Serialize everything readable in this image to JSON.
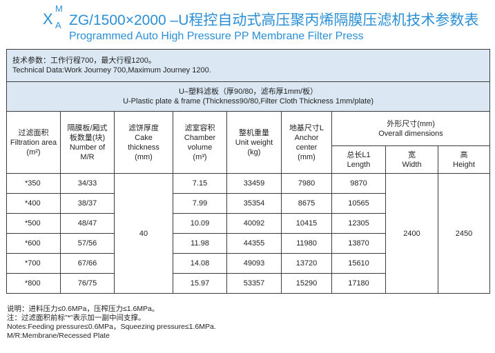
{
  "title": {
    "prefix_letter": "X",
    "prefix_sup": "M",
    "prefix_sub": "A",
    "cn": "ZG/1500×2000 –U程控自动式高压聚丙烯隔膜压滤机技术参数表",
    "en": "Programmed Auto High Pressure PP Membrane Filter Press"
  },
  "tech": {
    "cn": "技术参数：工作行程700，最大行程1200。",
    "en": "Technical Data:Work Journey 700,Maximum Journey 1200."
  },
  "plate": {
    "cn": "U–塑料滤板（厚90/80，滤布厚1mm/板）",
    "en": "U-Plastic plate & frame (Thickness90/80,Filter Cloth Thickness 1mm/plate)"
  },
  "headers": {
    "area": [
      "过滤面积",
      "Filtration area",
      "(m²)"
    ],
    "plates": [
      "隔膜板/厢式",
      "板数量(块)",
      "Number of",
      "M/R"
    ],
    "cake": [
      "滤饼厚度",
      "Cake",
      "thickness",
      "(mm)"
    ],
    "chamber": [
      "滤室容积",
      "Chamber",
      "volume",
      "(m³)"
    ],
    "weight": [
      "整机重量",
      "Unit weight",
      "(kg)"
    ],
    "anchor": [
      "地基尺寸L",
      "Anchor",
      "center",
      "(mm)"
    ],
    "overall": [
      "外形尺寸(mm)",
      "Overall  dimensions"
    ],
    "length": [
      "总长L1",
      "Length"
    ],
    "width": [
      "宽",
      "Width"
    ],
    "height": [
      "高",
      "Height"
    ]
  },
  "shared": {
    "cake": "40",
    "width": "2400",
    "height": "2450"
  },
  "rows": [
    {
      "area": "*350",
      "plates": "34/33",
      "volume": "7.15",
      "weight": "33459",
      "anchor": "7980",
      "length": "9870"
    },
    {
      "area": "*400",
      "plates": "38/37",
      "volume": "7.99",
      "weight": "35354",
      "anchor": "8675",
      "length": "10565"
    },
    {
      "area": "*500",
      "plates": "48/47",
      "volume": "10.09",
      "weight": "40092",
      "anchor": "10415",
      "length": "12305"
    },
    {
      "area": "*600",
      "plates": "57/56",
      "volume": "11.98",
      "weight": "44355",
      "anchor": "11980",
      "length": "13870"
    },
    {
      "area": "*700",
      "plates": "67/66",
      "volume": "14.08",
      "weight": "49093",
      "anchor": "13720",
      "length": "15610"
    },
    {
      "area": "*800",
      "plates": "76/75",
      "volume": "15.97",
      "weight": "53357",
      "anchor": "15290",
      "length": "17180"
    }
  ],
  "notes": [
    "说明：进料压力≤0.6MPa，压榨压力≤1.6MPa。",
    "注：过滤面积前标\"*\"表示加一副中间支撑。",
    "Notes:Feeding pressure≤0.6MPa，Squeezing pressure≤1.6MPa.",
    "M/R:Membrane/Recessed Plate"
  ]
}
